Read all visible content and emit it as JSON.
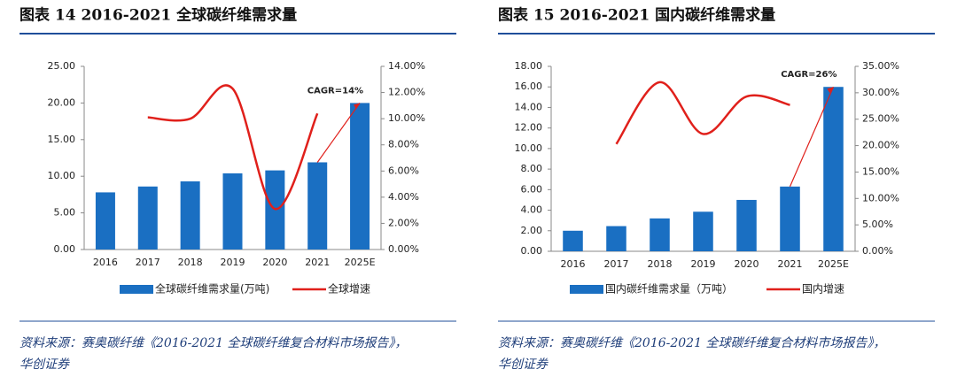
{
  "chart_data": [
    {
      "type": "bar",
      "title": "图表 14   2016-2021 全球碳纤维需求量",
      "categories": [
        "2016",
        "2017",
        "2018",
        "2019",
        "2020",
        "2021",
        "2025E"
      ],
      "series": [
        {
          "name": "全球碳纤维需求量(万吨)",
          "type": "bar",
          "color": "#1a6fc2",
          "values": [
            7.8,
            8.6,
            9.3,
            10.4,
            10.8,
            11.9,
            20.0
          ]
        },
        {
          "name": "全球增速",
          "type": "line",
          "axis": "y2",
          "color": "#e0201b",
          "values": [
            null,
            10.1,
            10.0,
            12.3,
            3.1,
            10.4,
            null
          ]
        }
      ],
      "ylim": [
        0,
        25
      ],
      "yticks": [
        {
          "value": 0,
          "label": "0.00"
        },
        {
          "value": 5,
          "label": "5.00"
        },
        {
          "value": 10,
          "label": "10.00"
        },
        {
          "value": 15,
          "label": "15.00"
        },
        {
          "value": 20,
          "label": "20.00"
        },
        {
          "value": 25,
          "label": "25.00"
        }
      ],
      "y2lim": [
        0,
        14
      ],
      "y2ticks": [
        {
          "value": 0,
          "label": "0.00%"
        },
        {
          "value": 2,
          "label": "2.00%"
        },
        {
          "value": 4,
          "label": "4.00%"
        },
        {
          "value": 6,
          "label": "6.00%"
        },
        {
          "value": 8,
          "label": "8.00%"
        },
        {
          "value": 10,
          "label": "10.00%"
        },
        {
          "value": 12,
          "label": "12.00%"
        },
        {
          "value": 14,
          "label": "14.00%"
        }
      ],
      "annotation": "CAGR=14%",
      "source": [
        "资料来源：赛奥碳纤维《2016-2021 全球碳纤维复合材料市场报告》，",
        "华创证券"
      ]
    },
    {
      "type": "bar",
      "title": "图表 15   2016-2021 国内碳纤维需求量",
      "categories": [
        "2016",
        "2017",
        "2018",
        "2019",
        "2020",
        "2021",
        "2025E"
      ],
      "series": [
        {
          "name": "国内碳纤维需求量（万吨）",
          "type": "bar",
          "color": "#1a6fc2",
          "values": [
            2.0,
            2.45,
            3.2,
            3.85,
            5.0,
            6.3,
            16.0
          ]
        },
        {
          "name": "国内增速",
          "type": "line",
          "axis": "y2",
          "color": "#e0201b",
          "values": [
            null,
            20.3,
            32.0,
            22.2,
            29.3,
            27.7,
            null
          ]
        }
      ],
      "ylim": [
        0,
        18
      ],
      "yticks": [
        {
          "value": 0,
          "label": "0.00"
        },
        {
          "value": 2,
          "label": "2.00"
        },
        {
          "value": 4,
          "label": "4.00"
        },
        {
          "value": 6,
          "label": "6.00"
        },
        {
          "value": 8,
          "label": "8.00"
        },
        {
          "value": 10,
          "label": "10.00"
        },
        {
          "value": 12,
          "label": "12.00"
        },
        {
          "value": 14,
          "label": "14.00"
        },
        {
          "value": 16,
          "label": "16.00"
        },
        {
          "value": 18,
          "label": "18.00"
        }
      ],
      "y2lim": [
        0,
        35
      ],
      "y2ticks": [
        {
          "value": 0,
          "label": "0.00%"
        },
        {
          "value": 5,
          "label": "5.00%"
        },
        {
          "value": 10,
          "label": "10.00%"
        },
        {
          "value": 15,
          "label": "15.00%"
        },
        {
          "value": 20,
          "label": "20.00%"
        },
        {
          "value": 25,
          "label": "25.00%"
        },
        {
          "value": 30,
          "label": "30.00%"
        },
        {
          "value": 35,
          "label": "35.00%"
        }
      ],
      "annotation": "CAGR=26%",
      "source": [
        "资料来源：赛奥碳纤维《2016-2021 全球碳纤维复合材料市场报告》，",
        "华创证券"
      ]
    }
  ]
}
